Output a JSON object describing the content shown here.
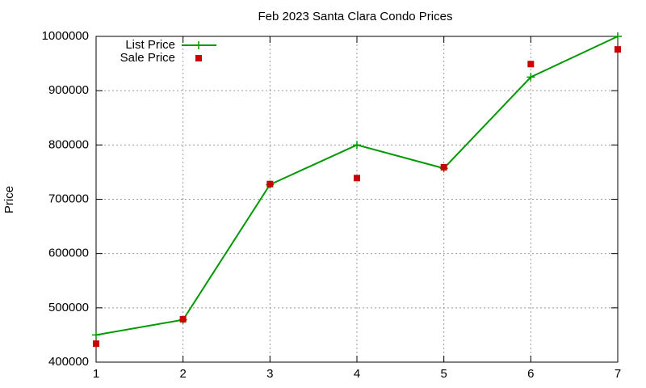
{
  "chart_data": {
    "type": "line",
    "title": "Feb 2023 Santa Clara Condo Prices",
    "y_label": "Price",
    "x": [
      1,
      2,
      3,
      4,
      5,
      6,
      7
    ],
    "series": [
      {
        "name": "List Price",
        "color": "#009900",
        "mode": "lines+markers",
        "marker": "plus",
        "values": [
          450000,
          478000,
          727000,
          800000,
          757000,
          925000,
          1000000
        ]
      },
      {
        "name": "Sale Price",
        "color": "#cc0000",
        "mode": "markers",
        "marker": "square",
        "values": [
          434000,
          479000,
          728000,
          739000,
          759000,
          949000,
          976000
        ]
      }
    ],
    "xlim": [
      1,
      7
    ],
    "xticks": [
      1,
      2,
      3,
      4,
      5,
      6,
      7
    ],
    "ylim": [
      400000,
      1000000
    ],
    "yticks": [
      400000,
      500000,
      600000,
      700000,
      800000,
      900000,
      1000000
    ],
    "grid": true,
    "legend": "top-left"
  }
}
